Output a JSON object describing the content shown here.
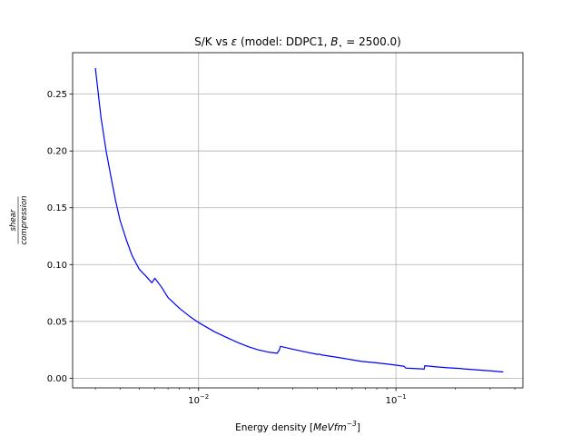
{
  "chart_data": {
    "type": "line",
    "title": "S/K vs ε (model: DDPC1, B⋆ = 2500.0)",
    "title_parts": {
      "prefix": "S/K vs ",
      "epsilon": "ε",
      "middle": " (model: DDPC1, ",
      "bstar": "B",
      "bstar_sub": "⋆",
      "suffix": " = 2500.0)"
    },
    "xlabel": "Energy density [MeV fm⁻³]",
    "xlabel_parts": {
      "prefix": "Energy density [",
      "unit": "MeVfm",
      "exp": "−3",
      "suffix": "]"
    },
    "ylabel": "shear / compression",
    "ylabel_parts": {
      "numerator": "shear",
      "denominator": "compression"
    },
    "xscale": "log",
    "xlim": [
      0.0023,
      0.44
    ],
    "ylim": [
      -0.0085,
      0.2865
    ],
    "grid": true,
    "xticks": [
      {
        "value": 0.01,
        "base": "10",
        "exp": "−2"
      },
      {
        "value": 0.1,
        "base": "10",
        "exp": "−1"
      }
    ],
    "yticks": [
      {
        "value": 0.0,
        "label": "0.00"
      },
      {
        "value": 0.05,
        "label": "0.05"
      },
      {
        "value": 0.1,
        "label": "0.10"
      },
      {
        "value": 0.15,
        "label": "0.15"
      },
      {
        "value": 0.2,
        "label": "0.20"
      },
      {
        "value": 0.25,
        "label": "0.25"
      }
    ],
    "series": [
      {
        "color": "#0000ff",
        "x": [
          0.003,
          0.0032,
          0.0034,
          0.0036,
          0.0038,
          0.004,
          0.0043,
          0.0046,
          0.005,
          0.0054,
          0.0058,
          0.0059,
          0.006,
          0.0065,
          0.007,
          0.008,
          0.009,
          0.01,
          0.012,
          0.014,
          0.016,
          0.018,
          0.02,
          0.0225,
          0.025,
          0.0256,
          0.026,
          0.03,
          0.035,
          0.04,
          0.041,
          0.042,
          0.05,
          0.06,
          0.066,
          0.067,
          0.07,
          0.08,
          0.09,
          0.1,
          0.11,
          0.112,
          0.115,
          0.125,
          0.135,
          0.139,
          0.14,
          0.16,
          0.18,
          0.2,
          0.215,
          0.217,
          0.25,
          0.3,
          0.35
        ],
        "y": [
          0.273,
          0.23,
          0.2,
          0.177,
          0.156,
          0.139,
          0.122,
          0.108,
          0.096,
          0.09,
          0.084,
          0.086,
          0.088,
          0.08,
          0.071,
          0.0615,
          0.0545,
          0.049,
          0.041,
          0.0355,
          0.031,
          0.0275,
          0.025,
          0.023,
          0.022,
          0.0245,
          0.028,
          0.0255,
          0.023,
          0.021,
          0.0212,
          0.0205,
          0.0185,
          0.0162,
          0.015,
          0.0148,
          0.0145,
          0.0135,
          0.0125,
          0.0115,
          0.0105,
          0.009,
          0.0088,
          0.0085,
          0.0082,
          0.008,
          0.011,
          0.01,
          0.0093,
          0.0088,
          0.0085,
          0.0083,
          0.0075,
          0.0065,
          0.0055
        ]
      }
    ]
  }
}
